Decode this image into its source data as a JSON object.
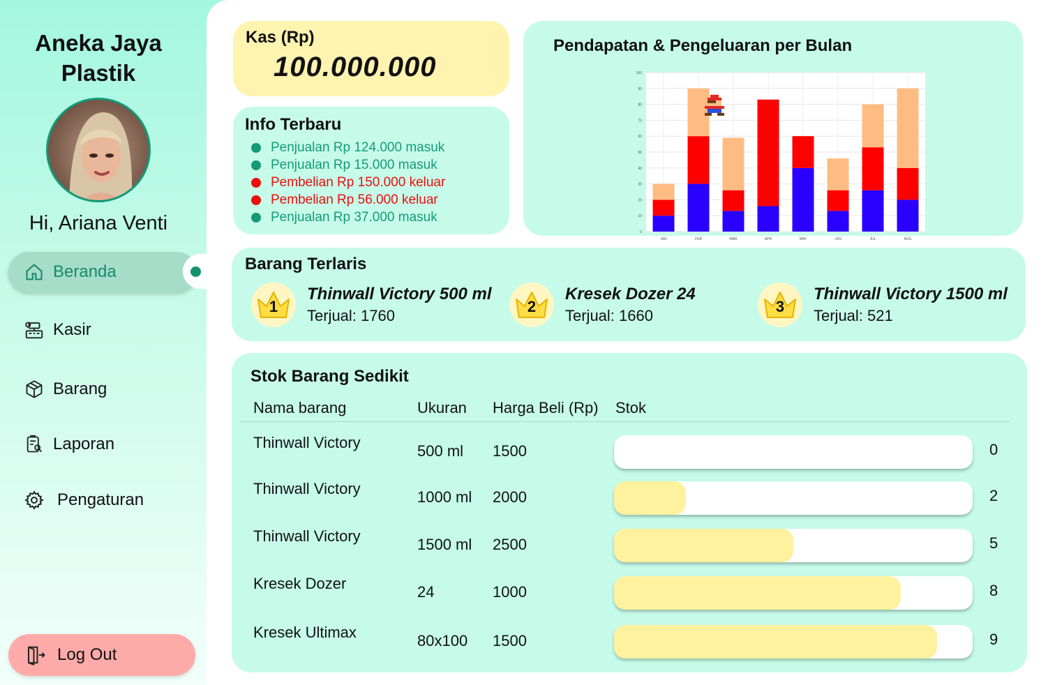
{
  "sidebar": {
    "brand": "Aneka Jaya Plastik",
    "greeting": "Hi, Ariana Venti",
    "nav": [
      {
        "label": "Beranda",
        "icon": "home-icon",
        "active": true
      },
      {
        "label": "Kasir",
        "icon": "cashier-icon"
      },
      {
        "label": "Barang",
        "icon": "box-icon"
      },
      {
        "label": "Laporan",
        "icon": "report-icon"
      },
      {
        "label": "Pengaturan",
        "icon": "gear-icon"
      }
    ],
    "logout": "Log Out"
  },
  "kas": {
    "label": "Kas (Rp)",
    "value": "100.000.000"
  },
  "info": {
    "title": "Info Terbaru",
    "items": [
      {
        "text": "Penjualan Rp 124.000 masuk",
        "type": "in"
      },
      {
        "text": "Penjualan Rp 15.000 masuk",
        "type": "in"
      },
      {
        "text": "Pembelian Rp 150.000 keluar",
        "type": "out"
      },
      {
        "text": "Pembelian Rp 56.000 keluar",
        "type": "out"
      },
      {
        "text": "Penjualan Rp 37.000 masuk",
        "type": "in"
      }
    ],
    "colors": {
      "in": "#149b74",
      "out": "#ef0d0d"
    }
  },
  "chart": {
    "title": "Pendapatan & Pengeluaran per Bulan"
  },
  "chart_data": {
    "type": "bar",
    "stacked": true,
    "title": "Pendapatan & Pengeluaran per Bulan",
    "categories": [
      "JAN",
      "FEB",
      "MAR",
      "APR",
      "MAY",
      "JUN",
      "JUL",
      "AUG"
    ],
    "series": [
      {
        "color": "#2a00ff",
        "values": [
          10,
          30,
          13,
          16,
          40,
          13,
          26,
          20
        ]
      },
      {
        "color": "#ff0000",
        "values": [
          10,
          30,
          13,
          67,
          20,
          13,
          27,
          20
        ]
      },
      {
        "color": "#ffbc82",
        "values": [
          10,
          30,
          33,
          0,
          0,
          20,
          27,
          50
        ]
      }
    ],
    "ylim": [
      0,
      100
    ],
    "yticks": [
      0,
      10,
      20,
      30,
      40,
      50,
      60,
      70,
      80,
      90,
      100
    ],
    "grid": true
  },
  "laris": {
    "title": "Barang Terlaris",
    "items": [
      {
        "rank": "1",
        "name": "Thinwall Victory 500 ml",
        "sold": "Terjual: 1760"
      },
      {
        "rank": "2",
        "name": "Kresek Dozer 24",
        "sold": "Terjual: 1660"
      },
      {
        "rank": "3",
        "name": "Thinwall Victory 1500 ml",
        "sold": "Terjual: 521"
      }
    ]
  },
  "stok": {
    "title": "Stok Barang Sedikit",
    "headers": [
      "Nama barang",
      "Ukuran",
      "Harga Beli (Rp)",
      "Stok"
    ],
    "max": 10,
    "rows": [
      {
        "name": "Thinwall Victory",
        "size": "500 ml",
        "price": "1500",
        "stock": "0",
        "level": 0
      },
      {
        "name": "Thinwall Victory",
        "size": "1000 ml",
        "price": "2000",
        "stock": "2",
        "level": 2
      },
      {
        "name": "Thinwall Victory",
        "size": "1500 ml",
        "price": "2500",
        "stock": "5",
        "level": 5
      },
      {
        "name": "Kresek Dozer",
        "size": "24",
        "price": "1000",
        "stock": "8",
        "level": 8
      },
      {
        "name": "Kresek Ultimax",
        "size": "80x100",
        "price": "1500",
        "stock": "9",
        "level": 9
      }
    ]
  }
}
